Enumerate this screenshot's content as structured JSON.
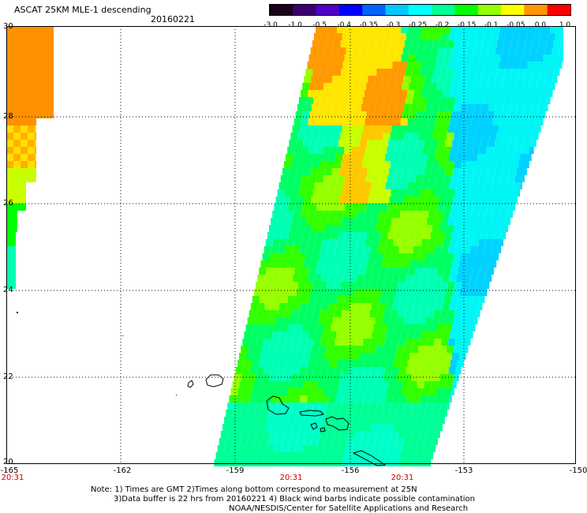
{
  "title": "ASCAT 25KM MLE-1 descending",
  "date": "20160221",
  "colorbar": {
    "labels": [
      "-3.0",
      "-1.0",
      "-0.5",
      "-0.4",
      "-0.35",
      "-0.3",
      "-0.25",
      "-0.2",
      "-0.15",
      "-0.1",
      "-0.05",
      "0.0",
      "1.0"
    ],
    "colors": [
      "#1a001a",
      "#3c0070",
      "#5000c8",
      "#0000ff",
      "#0064ff",
      "#00c8ff",
      "#00ffff",
      "#00ff96",
      "#00ff00",
      "#96ff00",
      "#ffff00",
      "#ff9600",
      "#ff0000"
    ]
  },
  "y_labels": [
    "30",
    "28",
    "26",
    "24",
    "22",
    "20"
  ],
  "x_labels": [
    "-165",
    "-162",
    "-159",
    "-156",
    "-153",
    "-150"
  ],
  "time_labels": [
    "20:31",
    "20:31",
    "20:31"
  ],
  "notes": {
    "line1": "Note: 1) Times are GMT 2)Times along bottom correspond to measurement at 25N",
    "line2": "3)Data buffer is 22 hrs from 20160221 4) Black wind barbs indicate possible contamination",
    "line3": "NOAA/NESDIS/Center for Satellite Applications and Research"
  }
}
